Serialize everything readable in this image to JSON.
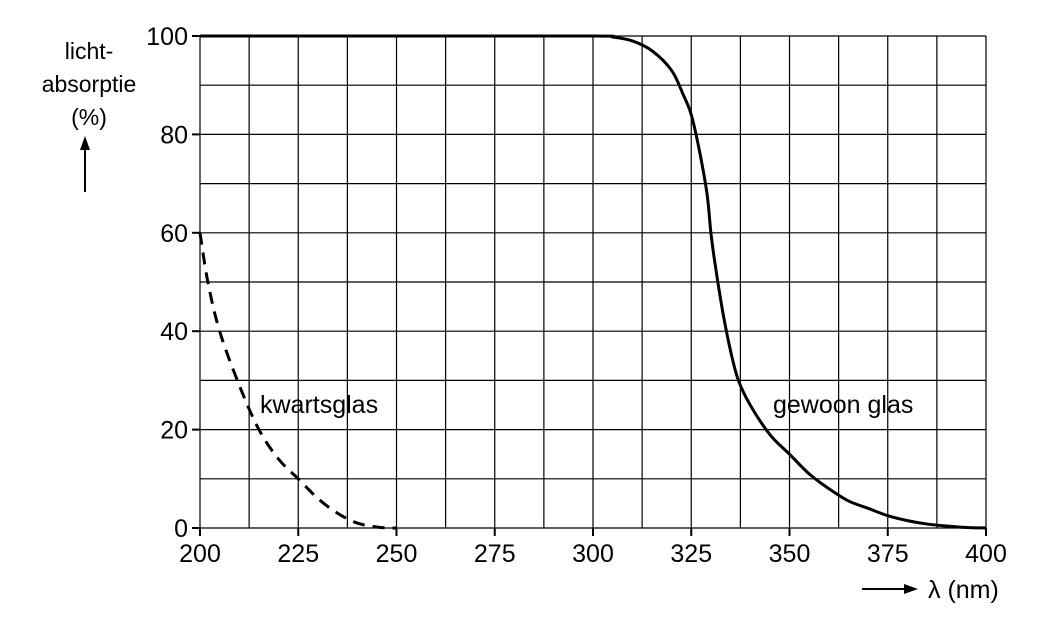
{
  "chart_data": {
    "type": "line",
    "ylabel_lines": [
      "licht-",
      "absorptie",
      "(%)"
    ],
    "xlabel": "λ (nm)",
    "xlim": [
      200,
      400
    ],
    "ylim": [
      0,
      100
    ],
    "x_ticks": [
      200,
      225,
      250,
      275,
      300,
      325,
      350,
      375,
      400
    ],
    "y_ticks": [
      0,
      20,
      40,
      60,
      80,
      100
    ],
    "x_minor_step": 12.5,
    "y_minor_step": 10,
    "grid": true,
    "series": [
      {
        "name": "kwartsglas",
        "style": "dashed",
        "x": [
          200,
          202,
          205,
          210,
          215,
          220,
          225,
          230,
          235,
          240,
          245,
          248,
          250
        ],
        "y": [
          60,
          50,
          40,
          29,
          20,
          14,
          10,
          6,
          3,
          1,
          0.2,
          0,
          0
        ]
      },
      {
        "name": "gewoon glas",
        "style": "solid",
        "x": [
          200,
          250,
          300,
          305,
          310,
          315,
          320,
          323,
          325,
          327,
          329,
          330,
          331,
          333,
          335,
          337,
          340,
          345,
          350,
          355,
          360,
          365,
          370,
          375,
          380,
          385,
          390,
          395,
          400
        ],
        "y": [
          100,
          100,
          100,
          99.8,
          99,
          97,
          93,
          88,
          84,
          77,
          68,
          60,
          54,
          44,
          36,
          30,
          25,
          19,
          15,
          11,
          8,
          5.5,
          4,
          2.5,
          1.5,
          0.8,
          0.4,
          0.1,
          0
        ]
      }
    ],
    "annotations": [
      {
        "text": "kwartsglas",
        "x": 205,
        "y": 23
      },
      {
        "text": "gewoon glas",
        "x": 365,
        "y": 23
      }
    ]
  }
}
